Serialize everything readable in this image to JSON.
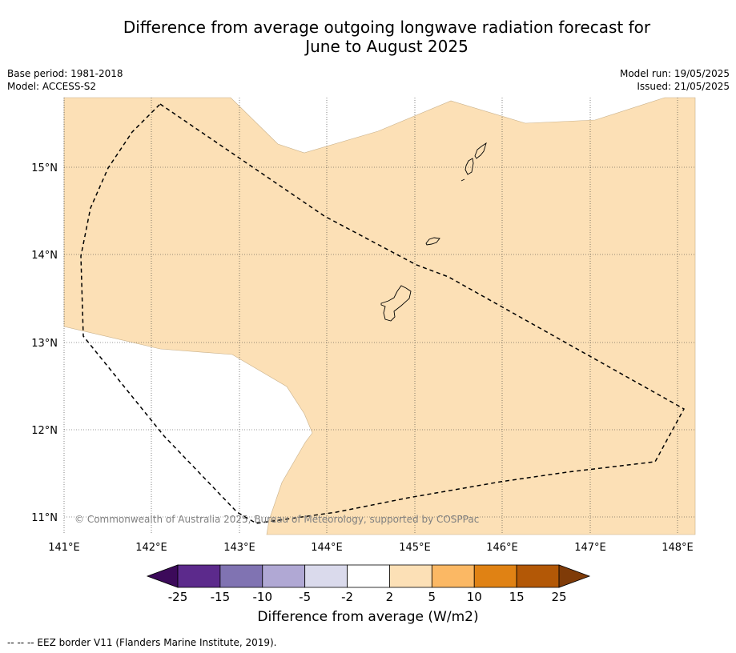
{
  "title_line1": "Difference from average outgoing longwave radiation forecast for",
  "title_line2": "June to August 2025",
  "meta": {
    "base_period": "Base period: 1981-2018",
    "model": "Model: ACCESS-S2",
    "model_run": "Model run: 19/05/2025",
    "issued": "Issued: 21/05/2025"
  },
  "map": {
    "lon_ticks": [
      "141°E",
      "142°E",
      "143°E",
      "144°E",
      "145°E",
      "146°E",
      "147°E",
      "148°E"
    ],
    "lat_ticks": [
      "11°N",
      "12°N",
      "13°N",
      "14°N",
      "15°N"
    ],
    "copyright": "© Commonwealth of Australia 2025, Bureau of Meteorology, supported by COSPPac",
    "fill_color": "#fce0b6",
    "eez_color": "#000000"
  },
  "colorbar": {
    "ticks": [
      "-25",
      "-15",
      "-10",
      "-5",
      "-2",
      "2",
      "5",
      "10",
      "15",
      "25"
    ],
    "colors": [
      "#3c0a5a",
      "#5c2a8c",
      "#8073b2",
      "#b0a8d4",
      "#dadaec",
      "#ffffff",
      "#fce0b6",
      "#fbb864",
      "#e08214",
      "#b35806",
      "#7f3b08"
    ],
    "label": "Difference from average (W/m2)"
  },
  "footnote": "--  --  -- EEZ border V11 (Flanders Marine Institute, 2019)."
}
